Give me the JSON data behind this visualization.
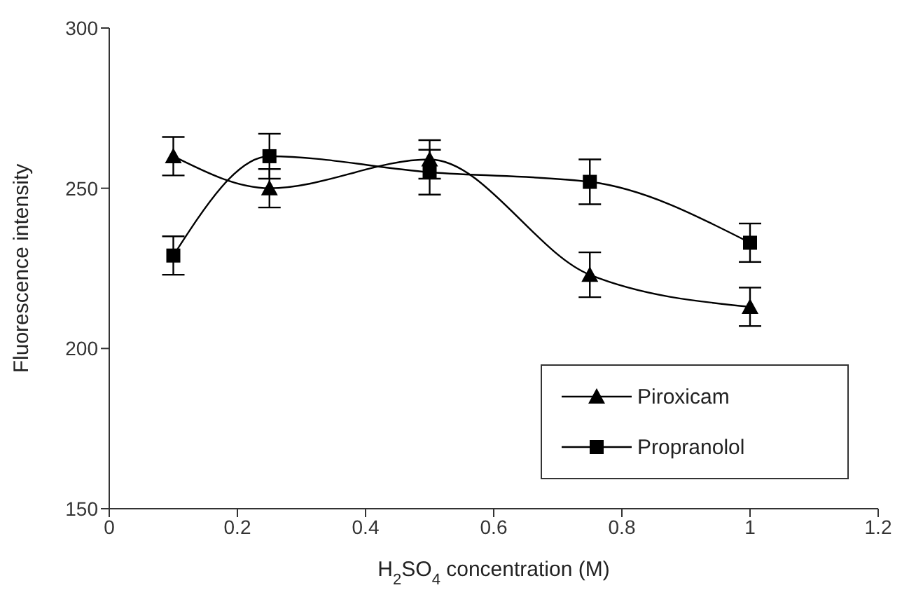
{
  "chart_data": {
    "type": "line",
    "xlabel": "H$_{2}$SO$_{4}$ concentration (M)",
    "ylabel": "Fluorescence intensity",
    "x": [
      0.1,
      0.25,
      0.5,
      0.75,
      1
    ],
    "series": [
      {
        "name": "Piroxicam",
        "color": "#000000",
        "marker": "triangle",
        "values": [
          260,
          250,
          259,
          223,
          213
        ],
        "errors": [
          6,
          6,
          6,
          7,
          6
        ]
      },
      {
        "name": "Propranolol",
        "color": "#000000",
        "marker": "square",
        "values": [
          229,
          260,
          255,
          252,
          233
        ],
        "errors": [
          6,
          7,
          7,
          7,
          6
        ]
      }
    ],
    "xlim": [
      0,
      1.2
    ],
    "xticks": [
      0,
      0.2,
      0.4,
      0.6,
      0.8,
      1,
      1.2
    ],
    "ylim": [
      150,
      300
    ],
    "yticks": [
      150,
      200,
      250,
      300
    ],
    "grid": false,
    "legend": "bottom right",
    "line_style": "solid"
  }
}
